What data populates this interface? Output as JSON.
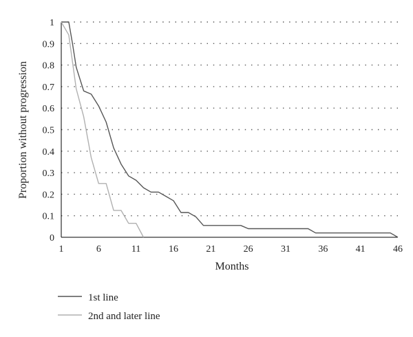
{
  "chart_data": {
    "type": "line",
    "title": "",
    "xlabel": "Months",
    "ylabel": "Proportion without progression",
    "xlim": [
      1,
      46
    ],
    "ylim": [
      0,
      1
    ],
    "xticks": [
      1,
      6,
      11,
      16,
      21,
      26,
      31,
      36,
      41,
      46
    ],
    "yticks": [
      0,
      0.1,
      0.2,
      0.3,
      0.4,
      0.5,
      0.6,
      0.7,
      0.8,
      0.9,
      1
    ],
    "ytick_labels": [
      "0",
      "0.1",
      "0.2",
      "0.3",
      "0.4",
      "0.5",
      "0.6",
      "0.7",
      "0.8",
      "0.9",
      "1"
    ],
    "grid": "horizontal dotted",
    "legend_position": "bottom-left",
    "series": [
      {
        "name": "1st line",
        "color": "#555555",
        "points": [
          [
            1,
            1
          ],
          [
            2,
            1
          ],
          [
            2.5,
            0.9
          ],
          [
            3,
            0.79
          ],
          [
            4,
            0.68
          ],
          [
            5,
            0.665
          ],
          [
            6,
            0.61
          ],
          [
            7,
            0.535
          ],
          [
            8,
            0.415
          ],
          [
            9,
            0.34
          ],
          [
            10,
            0.285
          ],
          [
            11,
            0.265
          ],
          [
            12,
            0.23
          ],
          [
            13,
            0.21
          ],
          [
            14,
            0.21
          ],
          [
            15,
            0.19
          ],
          [
            16,
            0.17
          ],
          [
            17,
            0.115
          ],
          [
            18,
            0.115
          ],
          [
            19,
            0.095
          ],
          [
            20,
            0.055
          ],
          [
            25,
            0.055
          ],
          [
            26,
            0.04
          ],
          [
            34,
            0.04
          ],
          [
            35,
            0.02
          ],
          [
            45,
            0.02
          ],
          [
            46,
            0
          ]
        ]
      },
      {
        "name": "2nd and later line",
        "color": "#b0b0b0",
        "points": [
          [
            1,
            1
          ],
          [
            2,
            0.94
          ],
          [
            3,
            0.69
          ],
          [
            4,
            0.56
          ],
          [
            5,
            0.37
          ],
          [
            6,
            0.25
          ],
          [
            7,
            0.25
          ],
          [
            8,
            0.125
          ],
          [
            9,
            0.125
          ],
          [
            10,
            0.065
          ],
          [
            11,
            0.065
          ],
          [
            12,
            0
          ]
        ]
      }
    ]
  }
}
